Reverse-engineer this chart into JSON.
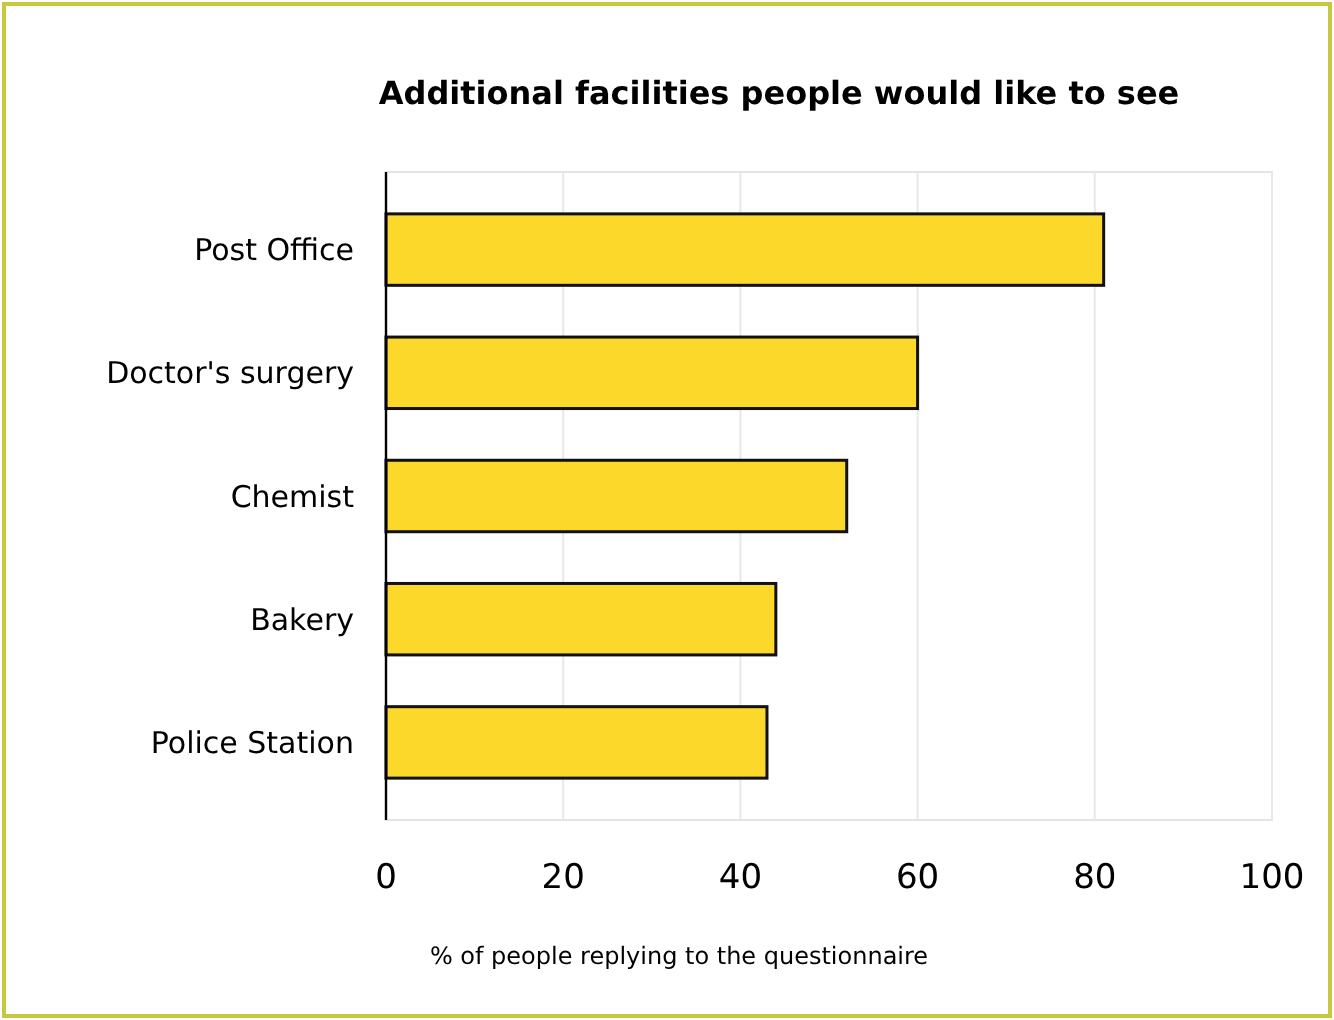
{
  "chart_data": {
    "type": "bar",
    "orientation": "horizontal",
    "title": "Additional facilities people would like to see",
    "xlabel": "% of people replying to the questionnaire",
    "categories": [
      "Post Office",
      "Doctor's surgery",
      "Chemist",
      "Bakery",
      "Police Station"
    ],
    "values": [
      81,
      60,
      52,
      44,
      43
    ],
    "color": "#fcd82a",
    "xlim": [
      0,
      100
    ],
    "xticks": [
      0,
      20,
      40,
      60,
      80,
      100
    ],
    "grid": "x"
  }
}
